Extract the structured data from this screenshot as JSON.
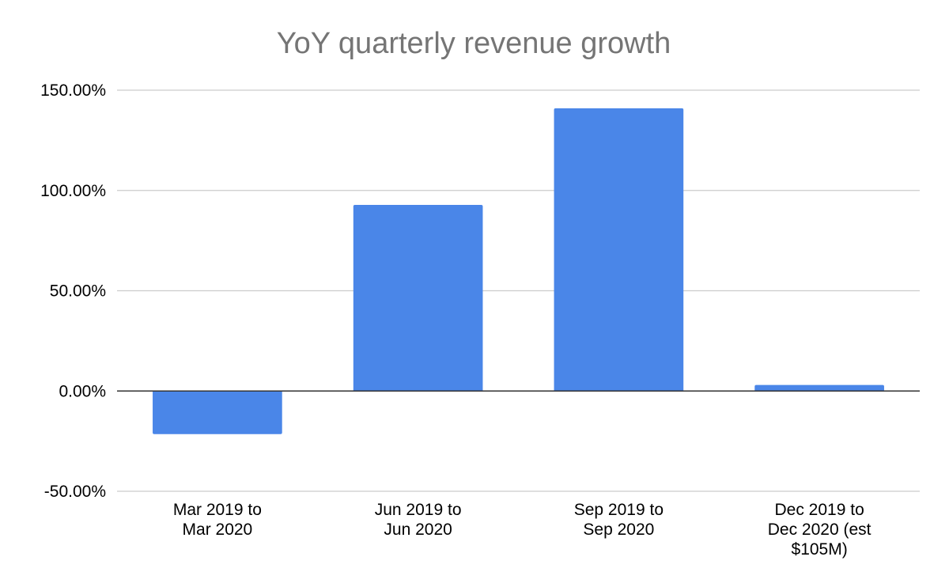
{
  "chart_data": {
    "type": "bar",
    "title": "YoY quarterly revenue growth",
    "xlabel": "",
    "ylabel": "",
    "categories": [
      [
        "Mar 2019 to",
        "Mar 2020"
      ],
      [
        "Jun 2019 to",
        "Jun 2020"
      ],
      [
        "Sep 2019 to",
        "Sep 2020"
      ],
      [
        "Dec 2019 to",
        "Dec 2020 (est",
        "$105M)"
      ]
    ],
    "values": [
      -21.5,
      92.8,
      141.0,
      3.0
    ],
    "ylim": [
      -50,
      150
    ],
    "yticks": [
      {
        "value": 150,
        "label": "150.00%"
      },
      {
        "value": 100,
        "label": "100.00%"
      },
      {
        "value": 50,
        "label": "50.00%"
      },
      {
        "value": 0,
        "label": "0.00%"
      },
      {
        "value": -50,
        "label": "-50.00%"
      }
    ],
    "grid": true,
    "legend": "none",
    "bar_color": "#4a86e8"
  }
}
